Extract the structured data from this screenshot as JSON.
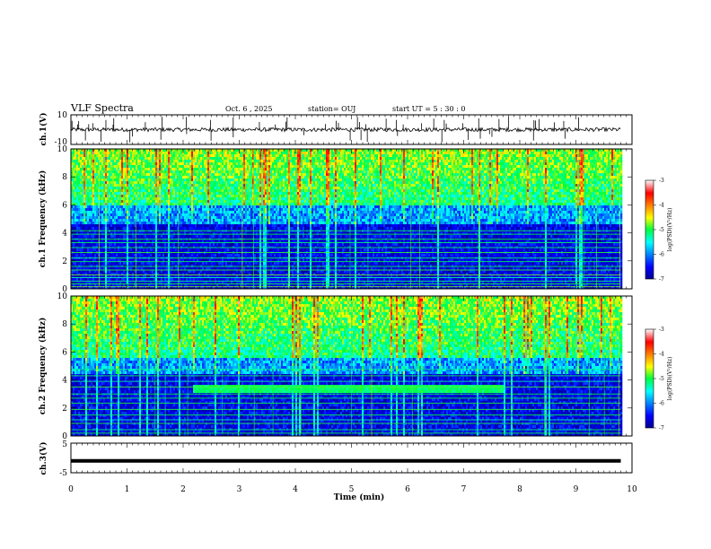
{
  "header": {
    "title": "VLF Spectra",
    "date": "Oct. 6  , 2025",
    "station": "station= OUJ",
    "start": "start  UT =   5  : 30 : 0"
  },
  "chart_data": [
    {
      "type": "line",
      "panel": "ch1-waveform",
      "ylabel": "ch.1(V)",
      "ylim": [
        -10,
        10
      ],
      "yticks": [
        "10",
        "-10"
      ],
      "xlim": [
        0,
        10
      ],
      "baseline": 0,
      "color": "#000000"
    },
    {
      "type": "heatmap",
      "panel": "ch1-spectrogram",
      "ylabel": "ch.1 Frequency  (kHz)",
      "ylim": [
        0,
        10
      ],
      "yticks": [
        "0",
        "2",
        "4",
        "6",
        "8",
        "10"
      ],
      "xlim": [
        0,
        10
      ],
      "data_end_min": 9.8,
      "noise_cutoff_khz": 5.9,
      "horizontal_lines_khz": [
        0.15,
        0.35,
        0.55,
        0.8,
        1.0,
        1.35,
        1.6,
        1.95,
        2.2,
        2.6,
        2.95,
        3.3,
        3.55,
        3.9,
        4.15
      ],
      "colorbar": {
        "label": "log(PSD)(V²/Hz)",
        "ticks": [
          "-3",
          "-4",
          "-5",
          "-6",
          "-7"
        ],
        "range": [
          -7,
          -3
        ]
      }
    },
    {
      "type": "heatmap",
      "panel": "ch2-spectrogram",
      "ylabel": "ch.2 Frequency  (kHz)",
      "ylim": [
        0,
        10
      ],
      "yticks": [
        "0",
        "2",
        "4",
        "6",
        "8",
        "10"
      ],
      "xlim": [
        0,
        10
      ],
      "data_end_min": 9.8,
      "noise_cutoff_khz": 5.6,
      "horizontal_lines_khz": [
        0.2,
        0.45,
        0.9,
        1.15,
        1.5,
        1.9,
        2.35,
        2.7,
        3.0,
        3.5,
        3.9,
        4.3,
        4.75
      ],
      "band": {
        "x_start_min": 2.15,
        "x_end_min": 7.7,
        "f_low_khz": 3.0,
        "f_high_khz": 3.6
      },
      "colorbar": {
        "label": "log(PSD)(V²/Hz)",
        "ticks": [
          "-3",
          "-4",
          "-5",
          "-6",
          "-7"
        ],
        "range": [
          -7,
          -3
        ]
      }
    },
    {
      "type": "line",
      "panel": "ch3-waveform",
      "ylabel": "ch.3(V)",
      "ylim": [
        -5,
        5
      ],
      "yticks": [
        "5",
        "-5"
      ],
      "xlim": [
        0,
        10
      ],
      "level": -1,
      "color": "#000000"
    }
  ],
  "xaxis": {
    "label": "Time  (min)",
    "ticks": [
      "0",
      "1",
      "2",
      "3",
      "4",
      "5",
      "6",
      "7",
      "8",
      "9",
      "10"
    ]
  }
}
